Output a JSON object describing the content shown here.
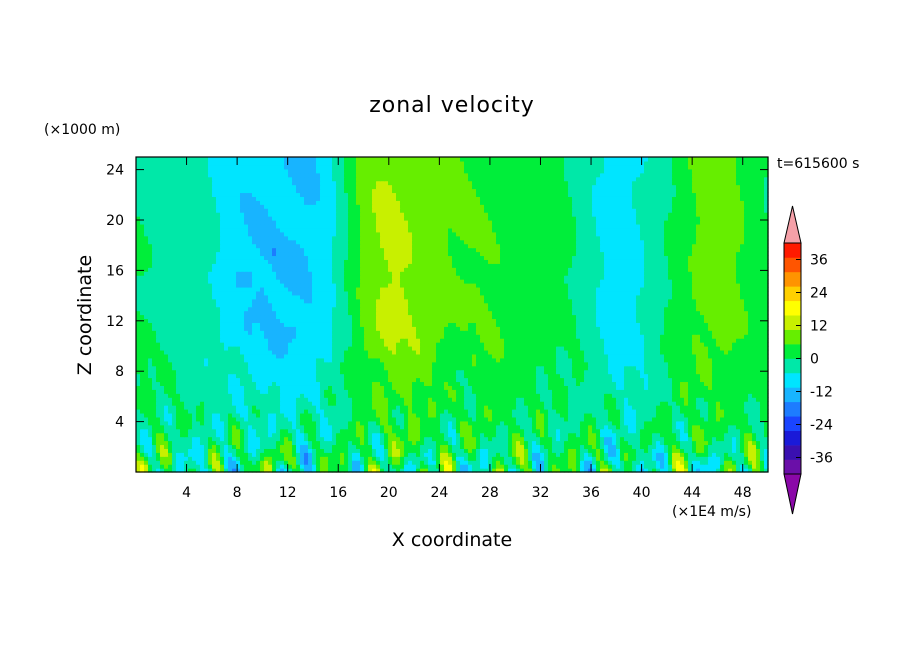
{
  "chart_data": {
    "type": "heatmap",
    "title": "zonal velocity",
    "xlabel": "X coordinate",
    "ylabel": "Z coordinate",
    "y_unit": "(×1000 m)",
    "color_unit": "(×1E4 m/s)",
    "time_label": "t=615600 s",
    "xlim": [
      0,
      50
    ],
    "ylim": [
      0,
      25
    ],
    "xticks": [
      4,
      8,
      12,
      16,
      20,
      24,
      28,
      32,
      36,
      40,
      44,
      48
    ],
    "yticks": [
      4,
      8,
      12,
      16,
      20,
      24
    ],
    "x_tick_labels": [
      "4",
      "8",
      "12",
      "16",
      "20",
      "24",
      "28",
      "32",
      "36",
      "40",
      "44",
      "48"
    ],
    "y_tick_labels": [
      "4",
      "8",
      "12",
      "16",
      "20",
      "24"
    ],
    "colorbar": {
      "labels": [
        "36",
        "24",
        "12",
        "0",
        "-12",
        "-24",
        "-36"
      ],
      "label_values": [
        36,
        24,
        12,
        0,
        -12,
        -24,
        -36
      ],
      "levels": [
        -42,
        -36,
        -30,
        -24,
        -18,
        -12,
        -6,
        0,
        6,
        12,
        18,
        24,
        30,
        36,
        42
      ],
      "colors": [
        "#6a0fa8",
        "#3a10b0",
        "#1a1ad8",
        "#1a45ff",
        "#1d7cff",
        "#18b4ff",
        "#00e5ff",
        "#00e8a8",
        "#00ee3a",
        "#66ee00",
        "#c8f000",
        "#ffff00",
        "#ffd000",
        "#ff9400",
        "#ff5500",
        "#ff1a00"
      ],
      "under_color": "#8a08a8",
      "over_color": "#f5a0a8"
    },
    "grid": false
  }
}
